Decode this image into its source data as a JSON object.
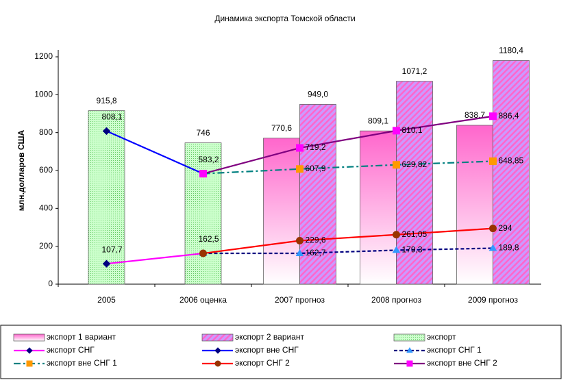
{
  "chart_data": {
    "type": "bar",
    "title": "Динамика экспорта Томской области",
    "y_label": "млн.долларов США",
    "categories": [
      "2005",
      "2006 оценка",
      "2007 прогноз",
      "2008 прогноз",
      "2009 прогноз"
    ],
    "ylim": [
      0,
      1200
    ],
    "yticks": [
      0,
      200,
      400,
      600,
      800,
      1000,
      1200
    ],
    "series": [
      {
        "name": "экспорт 1 вариант",
        "type": "bar",
        "color": "#ff66cc",
        "fill": "gradient",
        "values": [
          null,
          null,
          770.6,
          809.1,
          838.7
        ],
        "value_labels": [
          null,
          null,
          "770,6",
          "809,1",
          "838,7"
        ]
      },
      {
        "name": "экспорт 2 вариант",
        "type": "bar",
        "color": "#cc99ff",
        "fill": "hatch",
        "values": [
          null,
          null,
          949.0,
          1071.2,
          1180.4
        ],
        "value_labels": [
          null,
          null,
          "949,0",
          "1071,2",
          "1180,4"
        ]
      },
      {
        "name": "экспорт",
        "type": "bar",
        "color": "#ccffcc",
        "fill": "dots",
        "values": [
          915.8,
          746,
          null,
          null,
          null
        ],
        "value_labels": [
          "915,8",
          "746",
          null,
          null,
          null
        ]
      },
      {
        "name": "экспорт СНГ",
        "type": "line",
        "color": "#ff00ff",
        "linestyle": "solid",
        "marker": "diamond",
        "marker_color": "#000080",
        "values": [
          107.7,
          162.5,
          null,
          null,
          null
        ],
        "value_labels": [
          "107,7",
          "162,5",
          null,
          null,
          null
        ]
      },
      {
        "name": "экспорт вне СНГ",
        "type": "line",
        "color": "#0000ff",
        "linestyle": "solid",
        "marker": "diamond",
        "marker_color": "#000080",
        "values": [
          808.1,
          583.2,
          null,
          null,
          null
        ],
        "value_labels": [
          "808,1",
          "583,2",
          null,
          null,
          null
        ]
      },
      {
        "name": "экспорт СНГ 1",
        "type": "line",
        "color": "#000080",
        "linestyle": "dashed",
        "marker": "triangle",
        "marker_color": "#3399ff",
        "values": [
          null,
          162.5,
          162.7,
          179.3,
          189.8
        ],
        "value_labels": [
          null,
          null,
          "162,7",
          "179,3",
          "189,8"
        ]
      },
      {
        "name": "экспорт вне СНГ 1",
        "type": "line",
        "color": "#008080",
        "linestyle": "dashdot",
        "marker": "square",
        "marker_color": "#ff9900",
        "values": [
          null,
          583.2,
          607.9,
          629.82,
          648.85
        ],
        "value_labels": [
          null,
          null,
          "607,9",
          "629,82",
          "648,85"
        ]
      },
      {
        "name": "экспорт СНГ 2",
        "type": "line",
        "color": "#ff0000",
        "linestyle": "solid",
        "marker": "circle",
        "marker_color": "#993300",
        "values": [
          null,
          162.5,
          229.6,
          261.05,
          294
        ],
        "value_labels": [
          null,
          null,
          "229,6",
          "261,05",
          "294"
        ]
      },
      {
        "name": "экспорт вне СНГ 2",
        "type": "line",
        "color": "#800080",
        "linestyle": "solid",
        "marker": "square",
        "marker_color": "#ff00ff",
        "values": [
          null,
          583.2,
          719.2,
          810.1,
          886.4
        ],
        "value_labels": [
          null,
          null,
          "719,2",
          "810,1",
          "886,4"
        ]
      }
    ]
  }
}
